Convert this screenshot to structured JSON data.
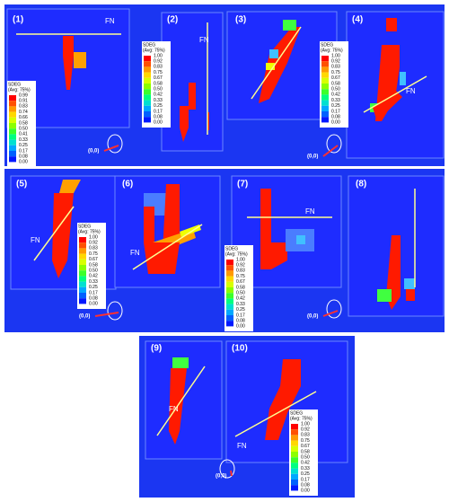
{
  "panels": [
    {
      "label": "(1)",
      "fn": "FN",
      "legend": {
        "title": "SDEG",
        "subtitle": "(Avg: 75%)",
        "values": [
          "0.99",
          "0.91",
          "0.83",
          "0.74",
          "0.66",
          "0.58",
          "0.50",
          "0.41",
          "0.33",
          "0.25",
          "0.17",
          "0.08",
          "0.00"
        ]
      }
    },
    {
      "label": "(2)",
      "fn": "FN",
      "legend": {
        "title": "SDEG",
        "subtitle": "(Avg: 75%)",
        "values": [
          "1.00",
          "0.92",
          "0.83",
          "0.75",
          "0.67",
          "0.58",
          "0.50",
          "0.42",
          "0.33",
          "0.25",
          "0.17",
          "0.08",
          "0.00"
        ]
      }
    },
    {
      "label": "(3)"
    },
    {
      "label": "(4)",
      "fn": "FN",
      "legend": {
        "title": "SDEG",
        "subtitle": "(Avg: 75%)",
        "values": [
          "1.00",
          "0.92",
          "0.83",
          "0.75",
          "0.67",
          "0.58",
          "0.50",
          "0.42",
          "0.33",
          "0.25",
          "0.17",
          "0.08",
          "0.00"
        ]
      }
    },
    {
      "label": "(5)",
      "fn": "FN",
      "legend": {
        "title": "SDEG",
        "subtitle": "(Avg: 75%)",
        "values": [
          "1.00",
          "0.92",
          "0.83",
          "0.75",
          "0.67",
          "0.58",
          "0.50",
          "0.42",
          "0.33",
          "0.25",
          "0.17",
          "0.08",
          "0.00"
        ]
      }
    },
    {
      "label": "(6)",
      "fn": "FN"
    },
    {
      "label": "(7)",
      "fn": "FN",
      "legend": {
        "title": "SDEG",
        "subtitle": "(Avg: 75%)",
        "values": [
          "1.00",
          "0.92",
          "0.83",
          "0.75",
          "0.67",
          "0.58",
          "0.50",
          "0.42",
          "0.33",
          "0.25",
          "0.17",
          "0.08",
          "0.00"
        ]
      }
    },
    {
      "label": "(8)"
    },
    {
      "label": "(9)",
      "fn": "FN"
    },
    {
      "label": "(10)",
      "fn": "FN",
      "legend": {
        "title": "SDEG",
        "subtitle": "(Avg: 75%)",
        "values": [
          "1.00",
          "0.92",
          "0.83",
          "0.75",
          "0.67",
          "0.58",
          "0.50",
          "0.42",
          "0.33",
          "0.25",
          "0.17",
          "0.08",
          "0.00"
        ]
      }
    }
  ],
  "origin_labels": [
    "(0,0)",
    "(0,0)",
    "(0,0)",
    "(0,0)",
    "(0,0)"
  ]
}
